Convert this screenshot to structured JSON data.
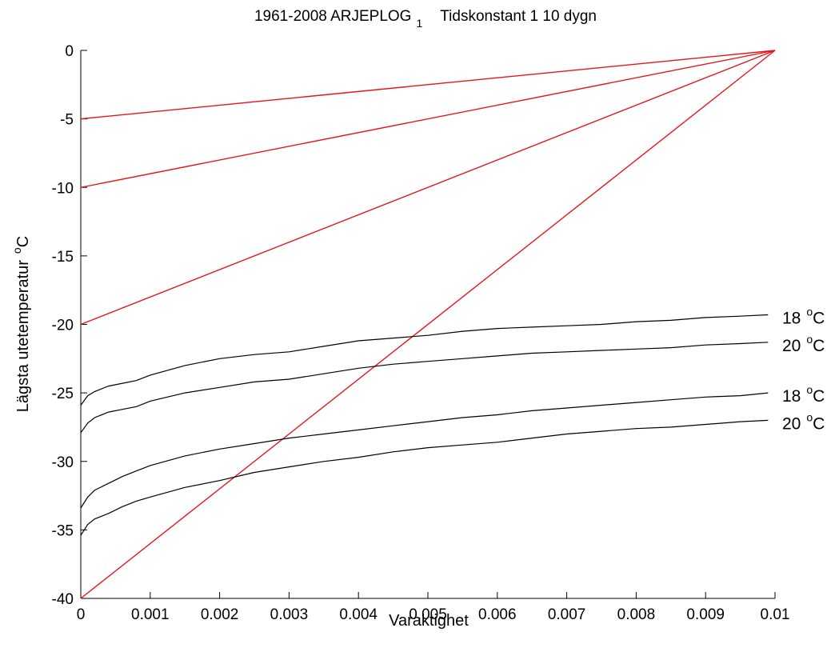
{
  "chart_data": {
    "type": "line",
    "title": {
      "main": "1961-2008  ARJEPLOG",
      "subscript": "1",
      "tail": "Tidskonstant 1 10 dygn"
    },
    "xlabel": "Varaktighet",
    "ylabel": {
      "main": "Lägsta utetemperatur",
      "superscript": "o",
      "unit": "C"
    },
    "xlim": [
      0,
      0.01
    ],
    "ylim": [
      -40,
      0
    ],
    "xticks": [
      0,
      0.001,
      0.002,
      0.003,
      0.004,
      0.005,
      0.006,
      0.007,
      0.008,
      0.009,
      0.01
    ],
    "xtick_labels": [
      "0",
      "0.001",
      "0.002",
      "0.003",
      "0.004",
      "0.005",
      "0.006",
      "0.007",
      "0.008",
      "0.009",
      "0.01"
    ],
    "yticks": [
      0,
      -5,
      -10,
      -15,
      -20,
      -25,
      -30,
      -35,
      -40
    ],
    "ytick_labels": [
      "0",
      "-5",
      "-10",
      "-15",
      "-20",
      "-25",
      "-30",
      "-35",
      "-40"
    ],
    "grid": false,
    "colors": {
      "red_lines": "#e8141b",
      "black_curves": "#000000"
    },
    "red_lines": [
      {
        "x": [
          0,
          0.01
        ],
        "y": [
          -5,
          0
        ]
      },
      {
        "x": [
          0,
          0.01
        ],
        "y": [
          -10,
          0
        ]
      },
      {
        "x": [
          0,
          0.01
        ],
        "y": [
          -20,
          0
        ]
      },
      {
        "x": [
          0,
          0.01
        ],
        "y": [
          -40,
          0
        ]
      }
    ],
    "curves": [
      {
        "label": "18",
        "label_sup": "o",
        "label_unit": "C",
        "x": [
          0,
          0.0001,
          0.0002,
          0.0004,
          0.0006,
          0.0008,
          0.001,
          0.0015,
          0.002,
          0.0025,
          0.003,
          0.0035,
          0.004,
          0.0045,
          0.005,
          0.0055,
          0.006,
          0.0065,
          0.007,
          0.0075,
          0.008,
          0.0085,
          0.009,
          0.0095,
          0.0099
        ],
        "y": [
          -25.9,
          -25.2,
          -24.9,
          -24.5,
          -24.3,
          -24.1,
          -23.7,
          -23.0,
          -22.5,
          -22.2,
          -22.0,
          -21.6,
          -21.2,
          -21.0,
          -20.8,
          -20.5,
          -20.3,
          -20.2,
          -20.1,
          -20.0,
          -19.8,
          -19.7,
          -19.5,
          -19.4,
          -19.3
        ]
      },
      {
        "label": "20",
        "label_sup": "o",
        "label_unit": "C",
        "x": [
          0,
          0.0001,
          0.0002,
          0.0004,
          0.0006,
          0.0008,
          0.001,
          0.0015,
          0.002,
          0.0025,
          0.003,
          0.0035,
          0.004,
          0.0045,
          0.005,
          0.0055,
          0.006,
          0.0065,
          0.007,
          0.0075,
          0.008,
          0.0085,
          0.009,
          0.0095,
          0.0099
        ],
        "y": [
          -27.9,
          -27.2,
          -26.8,
          -26.4,
          -26.2,
          -26.0,
          -25.6,
          -25.0,
          -24.6,
          -24.2,
          -24.0,
          -23.6,
          -23.2,
          -22.9,
          -22.7,
          -22.5,
          -22.3,
          -22.1,
          -22.0,
          -21.9,
          -21.8,
          -21.7,
          -21.5,
          -21.4,
          -21.3
        ]
      },
      {
        "label": "18",
        "label_sup": "o",
        "label_unit": "C",
        "x": [
          0,
          0.0001,
          0.0002,
          0.0004,
          0.0006,
          0.0008,
          0.001,
          0.0015,
          0.002,
          0.0025,
          0.003,
          0.0035,
          0.004,
          0.0045,
          0.005,
          0.0055,
          0.006,
          0.0065,
          0.007,
          0.0075,
          0.008,
          0.0085,
          0.009,
          0.0095,
          0.0099
        ],
        "y": [
          -33.4,
          -32.6,
          -32.1,
          -31.6,
          -31.1,
          -30.7,
          -30.3,
          -29.6,
          -29.1,
          -28.7,
          -28.3,
          -28.0,
          -27.7,
          -27.4,
          -27.1,
          -26.8,
          -26.6,
          -26.3,
          -26.1,
          -25.9,
          -25.7,
          -25.5,
          -25.3,
          -25.2,
          -25.0
        ]
      },
      {
        "label": "20",
        "label_sup": "o",
        "label_unit": "C",
        "x": [
          0,
          0.0001,
          0.0002,
          0.0004,
          0.0006,
          0.0008,
          0.001,
          0.0015,
          0.002,
          0.0025,
          0.003,
          0.0035,
          0.004,
          0.0045,
          0.005,
          0.0055,
          0.006,
          0.0065,
          0.007,
          0.0075,
          0.008,
          0.0085,
          0.009,
          0.0095,
          0.0099
        ],
        "y": [
          -35.4,
          -34.6,
          -34.2,
          -33.8,
          -33.3,
          -32.9,
          -32.6,
          -31.9,
          -31.4,
          -30.8,
          -30.4,
          -30.0,
          -29.7,
          -29.3,
          -29.0,
          -28.8,
          -28.6,
          -28.3,
          -28.0,
          -27.8,
          -27.6,
          -27.5,
          -27.3,
          -27.1,
          -27.0
        ]
      }
    ]
  }
}
